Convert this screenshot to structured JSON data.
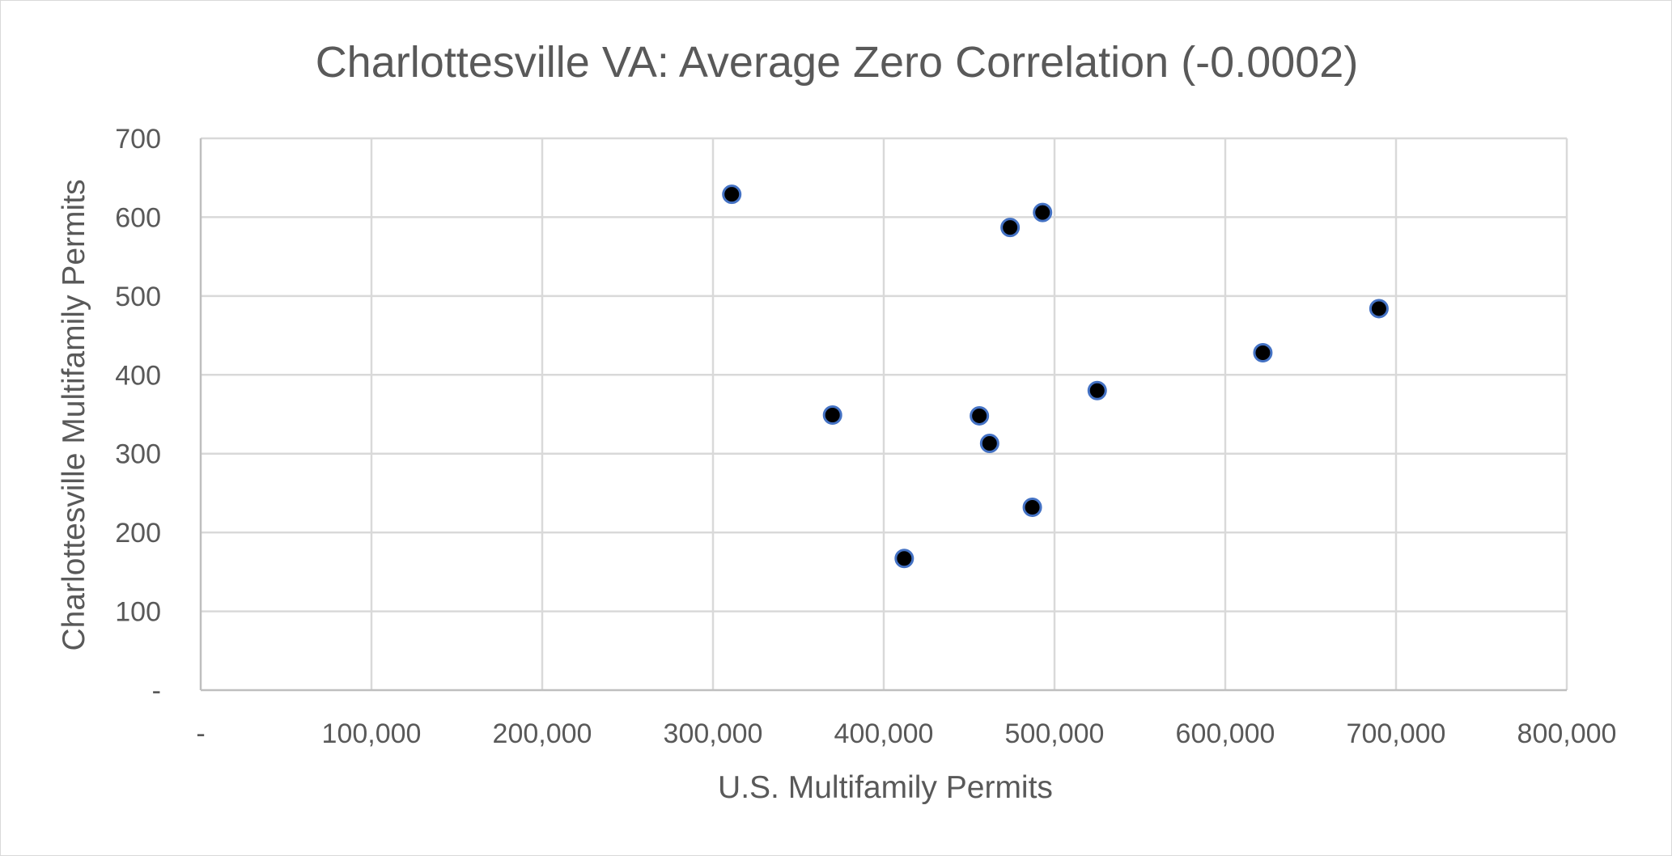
{
  "chart_data": {
    "type": "scatter",
    "title": "Charlottesville VA: Average Zero Correlation (-0.0002)",
    "xlabel": "U.S. Multifamily Permits",
    "ylabel": "Charlottesville Multifamily Permits",
    "xlim": [
      0,
      800000
    ],
    "ylim": [
      0,
      700
    ],
    "x_ticks": [
      0,
      100000,
      200000,
      300000,
      400000,
      500000,
      600000,
      700000,
      800000
    ],
    "x_tick_labels": [
      "-",
      "100,000",
      "200,000",
      "300,000",
      "400,000",
      "500,000",
      "600,000",
      "700,000",
      "800,000"
    ],
    "y_ticks": [
      0,
      100,
      200,
      300,
      400,
      500,
      600,
      700
    ],
    "y_tick_labels": [
      "-",
      "100",
      "200",
      "300",
      "400",
      "500",
      "600",
      "700"
    ],
    "grid": true,
    "marker_color": "#000000",
    "marker_edge_color": "#4472c4",
    "points": [
      {
        "x": 311000,
        "y": 629
      },
      {
        "x": 370000,
        "y": 349
      },
      {
        "x": 412000,
        "y": 167
      },
      {
        "x": 456000,
        "y": 348
      },
      {
        "x": 462000,
        "y": 313
      },
      {
        "x": 474000,
        "y": 587
      },
      {
        "x": 487000,
        "y": 232
      },
      {
        "x": 493000,
        "y": 606
      },
      {
        "x": 525000,
        "y": 380
      },
      {
        "x": 622000,
        "y": 428
      },
      {
        "x": 690000,
        "y": 484
      }
    ]
  }
}
